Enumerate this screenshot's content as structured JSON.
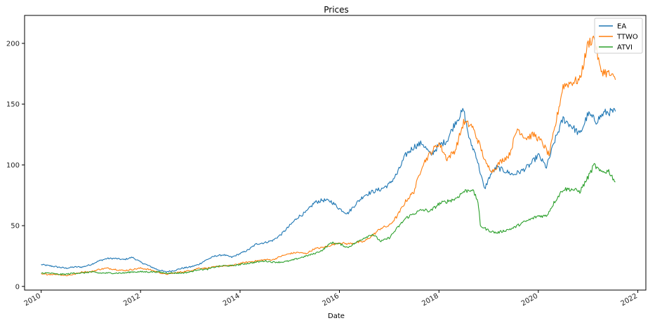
{
  "chart_data": {
    "type": "line",
    "title": "Prices",
    "xlabel": "Date",
    "ylabel": "",
    "x_ticks": [
      "2010",
      "2012",
      "2014",
      "2016",
      "2018",
      "2020",
      "2022"
    ],
    "y_ticks": [
      "0",
      "50",
      "100",
      "150",
      "200"
    ],
    "xlim": [
      "2009-09-01",
      "2022-03-01"
    ],
    "ylim": [
      -3,
      223
    ],
    "grid": false,
    "legend_position": "top-right",
    "series": [
      {
        "name": "EA",
        "color": "#1f77b4",
        "points": [
          [
            "2010-01-01",
            18
          ],
          [
            "2010-03-01",
            17
          ],
          [
            "2010-05-01",
            16
          ],
          [
            "2010-07-01",
            15
          ],
          [
            "2010-09-01",
            16
          ],
          [
            "2010-11-01",
            16
          ],
          [
            "2011-01-01",
            18
          ],
          [
            "2011-03-01",
            21
          ],
          [
            "2011-05-01",
            23
          ],
          [
            "2011-07-01",
            23
          ],
          [
            "2011-09-01",
            22
          ],
          [
            "2011-11-01",
            24
          ],
          [
            "2012-01-01",
            20
          ],
          [
            "2012-03-01",
            17
          ],
          [
            "2012-05-01",
            14
          ],
          [
            "2012-07-01",
            12
          ],
          [
            "2012-09-01",
            13
          ],
          [
            "2012-11-01",
            15
          ],
          [
            "2013-01-01",
            16
          ],
          [
            "2013-03-01",
            18
          ],
          [
            "2013-05-01",
            22
          ],
          [
            "2013-07-01",
            25
          ],
          [
            "2013-09-01",
            26
          ],
          [
            "2013-11-01",
            24
          ],
          [
            "2014-01-01",
            27
          ],
          [
            "2014-03-01",
            30
          ],
          [
            "2014-05-01",
            35
          ],
          [
            "2014-07-01",
            36
          ],
          [
            "2014-09-01",
            38
          ],
          [
            "2014-11-01",
            43
          ],
          [
            "2015-01-01",
            50
          ],
          [
            "2015-03-01",
            57
          ],
          [
            "2015-05-01",
            61
          ],
          [
            "2015-07-01",
            69
          ],
          [
            "2015-09-01",
            71
          ],
          [
            "2015-11-01",
            70
          ],
          [
            "2016-01-01",
            64
          ],
          [
            "2016-03-01",
            60
          ],
          [
            "2016-05-01",
            68
          ],
          [
            "2016-07-01",
            75
          ],
          [
            "2016-09-01",
            78
          ],
          [
            "2016-11-01",
            80
          ],
          [
            "2017-01-01",
            84
          ],
          [
            "2017-03-01",
            93
          ],
          [
            "2017-05-01",
            108
          ],
          [
            "2017-07-01",
            115
          ],
          [
            "2017-09-01",
            118
          ],
          [
            "2017-11-01",
            108
          ],
          [
            "2018-01-01",
            116
          ],
          [
            "2018-03-01",
            120
          ],
          [
            "2018-05-01",
            135
          ],
          [
            "2018-07-01",
            145
          ],
          [
            "2018-08-15",
            120
          ],
          [
            "2018-10-01",
            108
          ],
          [
            "2018-12-01",
            80
          ],
          [
            "2019-01-15",
            92
          ],
          [
            "2019-03-01",
            98
          ],
          [
            "2019-05-01",
            95
          ],
          [
            "2019-07-01",
            92
          ],
          [
            "2019-09-01",
            95
          ],
          [
            "2019-11-01",
            100
          ],
          [
            "2020-01-01",
            108
          ],
          [
            "2020-03-01",
            98
          ],
          [
            "2020-05-01",
            120
          ],
          [
            "2020-07-01",
            138
          ],
          [
            "2020-09-01",
            132
          ],
          [
            "2020-11-01",
            125
          ],
          [
            "2021-01-01",
            142
          ],
          [
            "2021-03-01",
            136
          ],
          [
            "2021-05-01",
            143
          ],
          [
            "2021-07-20",
            144
          ]
        ]
      },
      {
        "name": "TTWO",
        "color": "#ff7f0e",
        "points": [
          [
            "2010-01-01",
            10
          ],
          [
            "2010-03-01",
            10
          ],
          [
            "2010-05-01",
            10
          ],
          [
            "2010-07-01",
            9
          ],
          [
            "2010-09-01",
            10
          ],
          [
            "2010-11-01",
            12
          ],
          [
            "2011-01-01",
            12
          ],
          [
            "2011-03-01",
            14
          ],
          [
            "2011-05-01",
            15
          ],
          [
            "2011-07-01",
            14
          ],
          [
            "2011-09-01",
            13
          ],
          [
            "2011-11-01",
            14
          ],
          [
            "2012-01-01",
            15
          ],
          [
            "2012-03-01",
            14
          ],
          [
            "2012-05-01",
            12
          ],
          [
            "2012-07-01",
            10
          ],
          [
            "2012-09-01",
            11
          ],
          [
            "2012-11-01",
            12
          ],
          [
            "2013-01-01",
            13
          ],
          [
            "2013-03-01",
            15
          ],
          [
            "2013-05-01",
            15
          ],
          [
            "2013-07-01",
            16
          ],
          [
            "2013-09-01",
            17
          ],
          [
            "2013-11-01",
            17
          ],
          [
            "2014-01-01",
            19
          ],
          [
            "2014-03-01",
            20
          ],
          [
            "2014-05-01",
            21
          ],
          [
            "2014-07-01",
            22
          ],
          [
            "2014-09-01",
            22
          ],
          [
            "2014-11-01",
            25
          ],
          [
            "2015-01-01",
            27
          ],
          [
            "2015-03-01",
            28
          ],
          [
            "2015-05-01",
            27
          ],
          [
            "2015-07-01",
            31
          ],
          [
            "2015-09-01",
            32
          ],
          [
            "2015-11-01",
            34
          ],
          [
            "2016-01-01",
            36
          ],
          [
            "2016-03-01",
            35
          ],
          [
            "2016-05-01",
            36
          ],
          [
            "2016-07-01",
            37
          ],
          [
            "2016-09-01",
            42
          ],
          [
            "2016-11-01",
            48
          ],
          [
            "2017-01-01",
            50
          ],
          [
            "2017-03-01",
            58
          ],
          [
            "2017-05-01",
            70
          ],
          [
            "2017-07-01",
            78
          ],
          [
            "2017-09-01",
            100
          ],
          [
            "2017-11-01",
            110
          ],
          [
            "2018-01-01",
            118
          ],
          [
            "2018-03-01",
            105
          ],
          [
            "2018-05-01",
            112
          ],
          [
            "2018-07-01",
            135
          ],
          [
            "2018-09-01",
            132
          ],
          [
            "2018-11-01",
            115
          ],
          [
            "2018-12-15",
            100
          ],
          [
            "2019-02-01",
            95
          ],
          [
            "2019-04-01",
            103
          ],
          [
            "2019-06-01",
            108
          ],
          [
            "2019-08-01",
            130
          ],
          [
            "2019-10-01",
            122
          ],
          [
            "2019-12-01",
            125
          ],
          [
            "2020-02-01",
            118
          ],
          [
            "2020-03-20",
            108
          ],
          [
            "2020-05-01",
            130
          ],
          [
            "2020-07-01",
            165
          ],
          [
            "2020-09-01",
            168
          ],
          [
            "2020-11-01",
            170
          ],
          [
            "2021-01-01",
            200
          ],
          [
            "2021-02-15",
            205
          ],
          [
            "2021-04-01",
            178
          ],
          [
            "2021-06-01",
            175
          ],
          [
            "2021-07-20",
            170
          ]
        ]
      },
      {
        "name": "ATVI",
        "color": "#2ca02c",
        "points": [
          [
            "2010-01-01",
            11
          ],
          [
            "2010-03-01",
            11
          ],
          [
            "2010-05-01",
            10
          ],
          [
            "2010-07-01",
            10
          ],
          [
            "2010-09-01",
            11
          ],
          [
            "2010-11-01",
            11
          ],
          [
            "2011-01-01",
            12
          ],
          [
            "2011-03-01",
            11
          ],
          [
            "2011-05-01",
            11
          ],
          [
            "2011-07-01",
            11
          ],
          [
            "2011-09-01",
            11
          ],
          [
            "2011-11-01",
            12
          ],
          [
            "2012-01-01",
            12
          ],
          [
            "2012-03-01",
            12
          ],
          [
            "2012-05-01",
            12
          ],
          [
            "2012-07-01",
            11
          ],
          [
            "2012-09-01",
            11
          ],
          [
            "2012-11-01",
            11
          ],
          [
            "2013-01-01",
            12
          ],
          [
            "2013-03-01",
            14
          ],
          [
            "2013-05-01",
            14
          ],
          [
            "2013-07-01",
            16
          ],
          [
            "2013-09-01",
            17
          ],
          [
            "2013-11-01",
            17
          ],
          [
            "2014-01-01",
            18
          ],
          [
            "2014-03-01",
            19
          ],
          [
            "2014-05-01",
            20
          ],
          [
            "2014-07-01",
            21
          ],
          [
            "2014-09-01",
            20
          ],
          [
            "2014-11-01",
            20
          ],
          [
            "2015-01-01",
            21
          ],
          [
            "2015-03-01",
            23
          ],
          [
            "2015-05-01",
            25
          ],
          [
            "2015-07-01",
            27
          ],
          [
            "2015-09-01",
            30
          ],
          [
            "2015-11-01",
            36
          ],
          [
            "2016-01-01",
            35
          ],
          [
            "2016-03-01",
            32
          ],
          [
            "2016-05-01",
            36
          ],
          [
            "2016-07-01",
            40
          ],
          [
            "2016-09-01",
            43
          ],
          [
            "2016-11-01",
            37
          ],
          [
            "2017-01-01",
            40
          ],
          [
            "2017-03-01",
            48
          ],
          [
            "2017-05-01",
            56
          ],
          [
            "2017-07-01",
            60
          ],
          [
            "2017-09-01",
            63
          ],
          [
            "2017-11-01",
            62
          ],
          [
            "2018-01-01",
            68
          ],
          [
            "2018-03-01",
            70
          ],
          [
            "2018-05-01",
            72
          ],
          [
            "2018-07-01",
            78
          ],
          [
            "2018-09-01",
            80
          ],
          [
            "2018-10-15",
            70
          ],
          [
            "2018-11-01",
            50
          ],
          [
            "2019-01-01",
            46
          ],
          [
            "2019-03-01",
            44
          ],
          [
            "2019-05-01",
            46
          ],
          [
            "2019-07-01",
            48
          ],
          [
            "2019-09-01",
            52
          ],
          [
            "2019-11-01",
            55
          ],
          [
            "2020-01-01",
            58
          ],
          [
            "2020-03-01",
            58
          ],
          [
            "2020-05-01",
            70
          ],
          [
            "2020-07-01",
            80
          ],
          [
            "2020-09-01",
            80
          ],
          [
            "2020-11-01",
            78
          ],
          [
            "2021-01-01",
            90
          ],
          [
            "2021-02-15",
            100
          ],
          [
            "2021-04-01",
            94
          ],
          [
            "2021-06-01",
            95
          ],
          [
            "2021-07-20",
            86
          ]
        ]
      }
    ]
  }
}
